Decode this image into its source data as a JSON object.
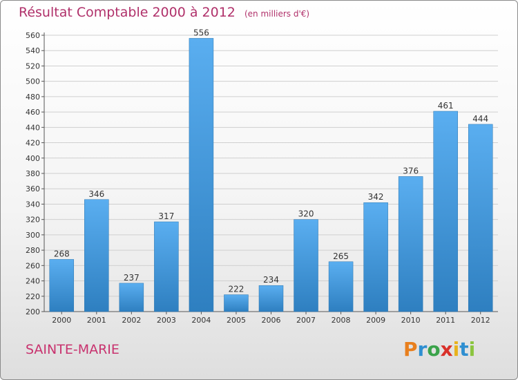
{
  "title": "Résultat Comptable 2000 à 2012",
  "subtitle": "(en milliers d'€)",
  "place": "SAINTE-MARIE",
  "brand": {
    "letters": [
      "P",
      "r",
      "o",
      "x",
      "i",
      "t",
      "i"
    ],
    "colors": [
      "#e87f1d",
      "#2f8fd1",
      "#3aa34a",
      "#d9302a",
      "#e8b21d",
      "#2f8fd1",
      "#8bc53f"
    ]
  },
  "colors": {
    "bar_top": "#5aaef0",
    "bar_bottom": "#2e7fc0",
    "title": "#b0306a",
    "grid": "#cfcfcf"
  },
  "chart_data": {
    "type": "bar",
    "title": "Résultat Comptable 2000 à 2012",
    "subtitle": "(en milliers d'€)",
    "xlabel": "",
    "ylabel": "",
    "categories": [
      "2000",
      "2001",
      "2002",
      "2003",
      "2004",
      "2005",
      "2006",
      "2007",
      "2008",
      "2009",
      "2010",
      "2011",
      "2012"
    ],
    "values": [
      268,
      346,
      237,
      317,
      556,
      222,
      234,
      320,
      265,
      342,
      376,
      461,
      444
    ],
    "ylim": [
      200,
      560
    ],
    "yticks": [
      200,
      220,
      240,
      260,
      280,
      300,
      320,
      340,
      360,
      380,
      400,
      420,
      440,
      460,
      480,
      500,
      520,
      540,
      560
    ],
    "grid": true,
    "data_labels": true
  }
}
